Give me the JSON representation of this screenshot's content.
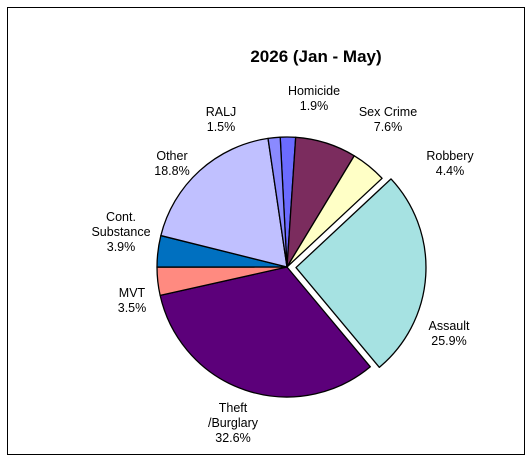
{
  "chart_data": {
    "type": "pie",
    "title": "2026 (Jan - May)",
    "slices": [
      {
        "lines": [
          "Homicide",
          "1.9%"
        ],
        "value": 1.9,
        "color": "#6B6BFF"
      },
      {
        "lines": [
          "Sex Crime",
          "7.6%"
        ],
        "value": 7.6,
        "color": "#7B2C5E"
      },
      {
        "lines": [
          "Robbery",
          "4.4%"
        ],
        "value": 4.4,
        "color": "#FFFFC6"
      },
      {
        "lines": [
          "Assault",
          "25.9%"
        ],
        "value": 25.9,
        "color": "#A6E2E2",
        "exploded": true
      },
      {
        "lines": [
          "Theft",
          "/Burglary",
          "32.6%"
        ],
        "value": 32.6,
        "color": "#5C007A"
      },
      {
        "lines": [
          "MVT",
          "3.5%"
        ],
        "value": 3.5,
        "color": "#FF8A80"
      },
      {
        "lines": [
          "Cont.",
          "Substance",
          "3.9%"
        ],
        "value": 3.9,
        "color": "#0070C0"
      },
      {
        "lines": [
          "Other",
          "18.8%"
        ],
        "value": 18.8,
        "color": "#C0C0FF"
      },
      {
        "lines": [
          "RALJ",
          "1.5%"
        ],
        "value": 1.5,
        "color": "#8A8AFF"
      }
    ]
  }
}
